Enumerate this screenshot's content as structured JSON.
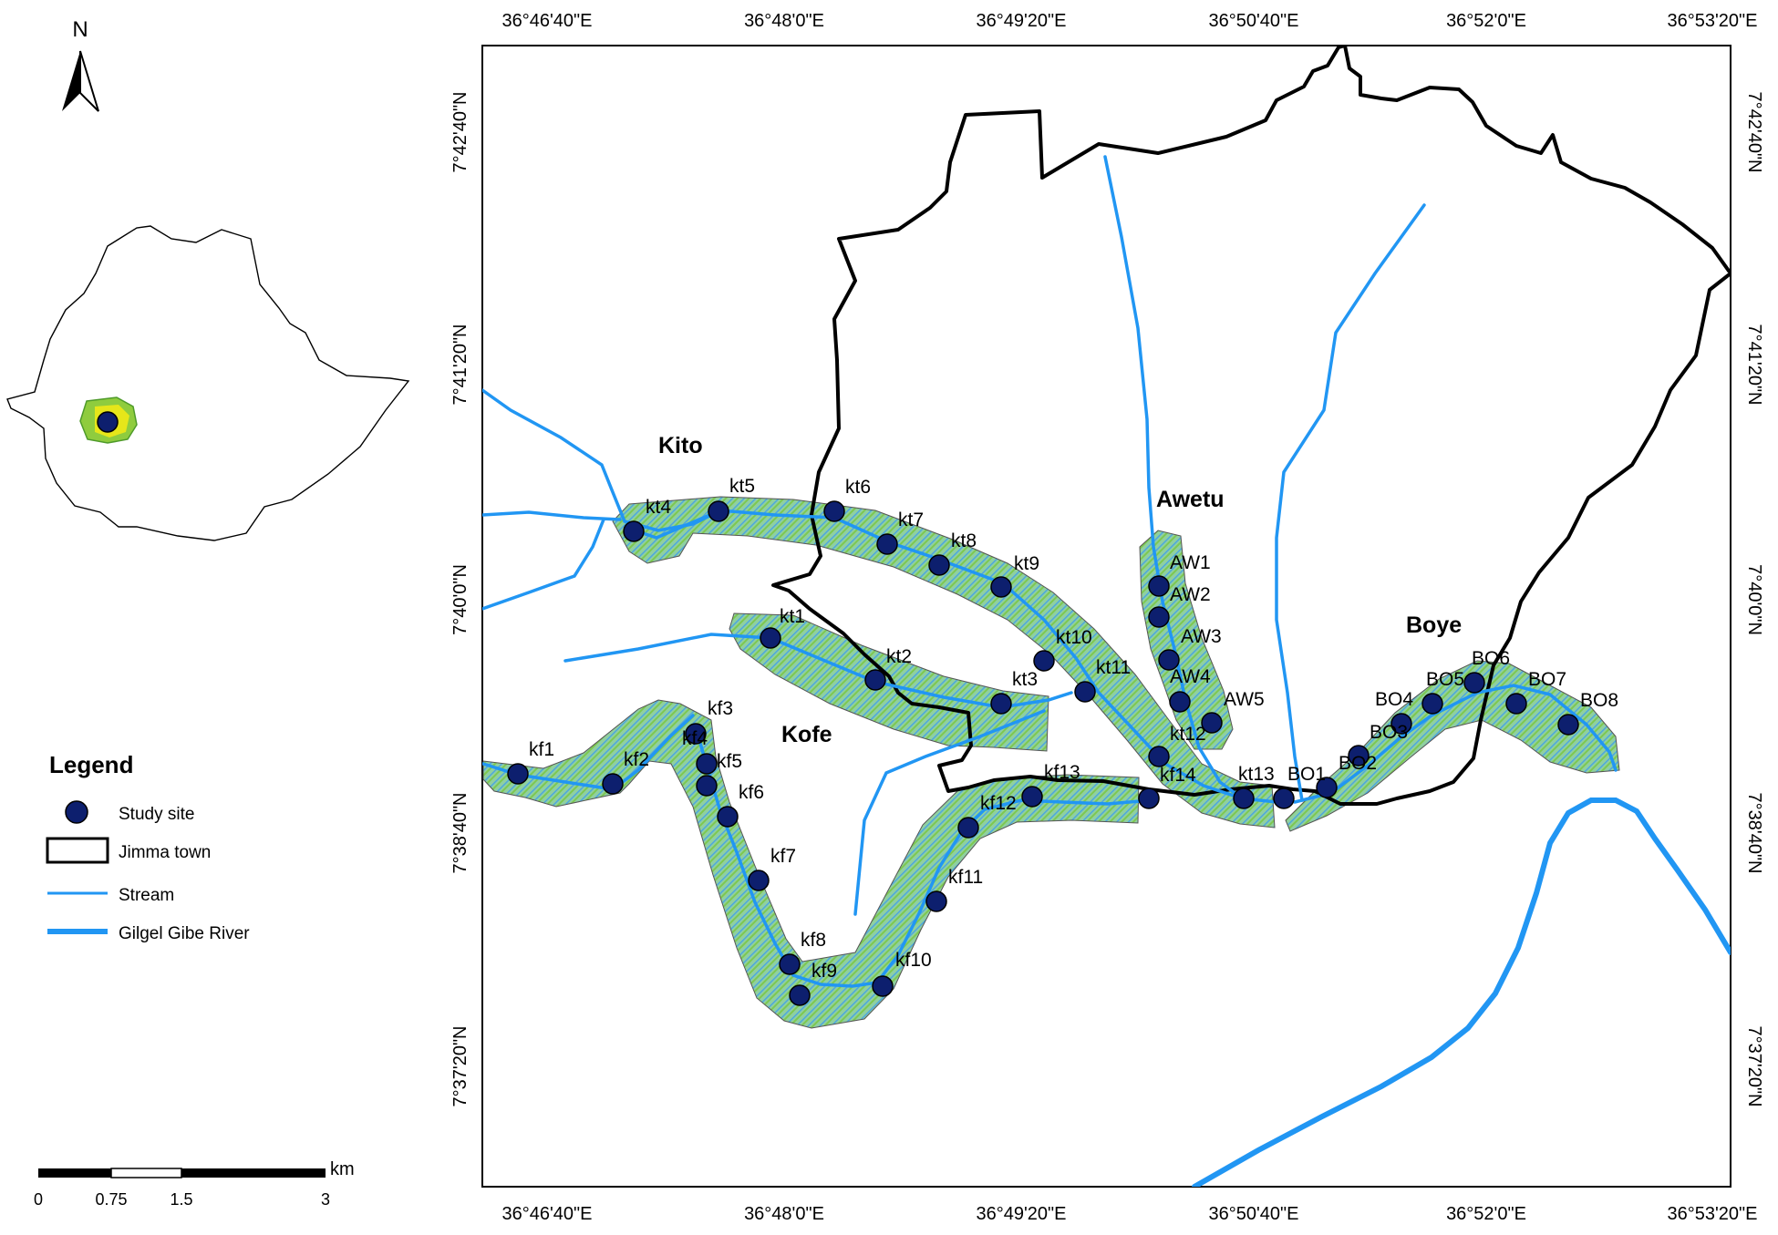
{
  "map": {
    "north_arrow_label": "N",
    "top_ticks": [
      "36°46'40\"E",
      "36°48'0\"E",
      "36°49'20\"E",
      "36°50'40\"E",
      "36°52'0\"E",
      "36°53'20\"E"
    ],
    "bottom_ticks": [
      "36°46'40\"E",
      "36°48'0\"E",
      "36°49'20\"E",
      "36°50'40\"E",
      "36°52'0\"E",
      "36°53'20\"E"
    ],
    "left_ticks": [
      "7°42'40\"N",
      "7°41'20\"N",
      "7°40'0\"N",
      "7°38'40\"N",
      "7°37'20\"N"
    ],
    "right_ticks": [
      "7°42'40\"N",
      "7°41'20\"N",
      "7°40'0\"N",
      "7°38'40\"N",
      "7°37'20\"N"
    ],
    "area_labels": [
      "Kito",
      "Kofe",
      "Awetu",
      "Boye"
    ],
    "sites": [
      "kt1",
      "kt2",
      "kt3",
      "kt4",
      "kt5",
      "kt6",
      "kt7",
      "kt8",
      "kt9",
      "kt10",
      "kt11",
      "kt12",
      "kt13",
      "kf1",
      "kf2",
      "kf3",
      "kf4",
      "kf5",
      "kf6",
      "kf7",
      "kf8",
      "kf9",
      "kf10",
      "kf11",
      "kf12",
      "kf13",
      "kf14",
      "AW1",
      "AW2",
      "AW3",
      "AW4",
      "AW5",
      "BO1",
      "BO2",
      "BO3",
      "BO4",
      "BO5",
      "BO6",
      "BO7",
      "BO8"
    ]
  },
  "legend": {
    "title": "Legend",
    "items": [
      "Study site",
      "Jimma town",
      "Stream",
      "Gilgel Gibe River"
    ]
  },
  "scale_bar": {
    "unit": "km",
    "labels": [
      "0",
      "0.75",
      "1.5",
      "3"
    ]
  },
  "colors": {
    "stream": "#2196f3",
    "site_fill": "#0d1f6e",
    "buffer_green": "#7cc576",
    "buffer_blue": "#5aa9e6",
    "boundary": "#000000"
  }
}
